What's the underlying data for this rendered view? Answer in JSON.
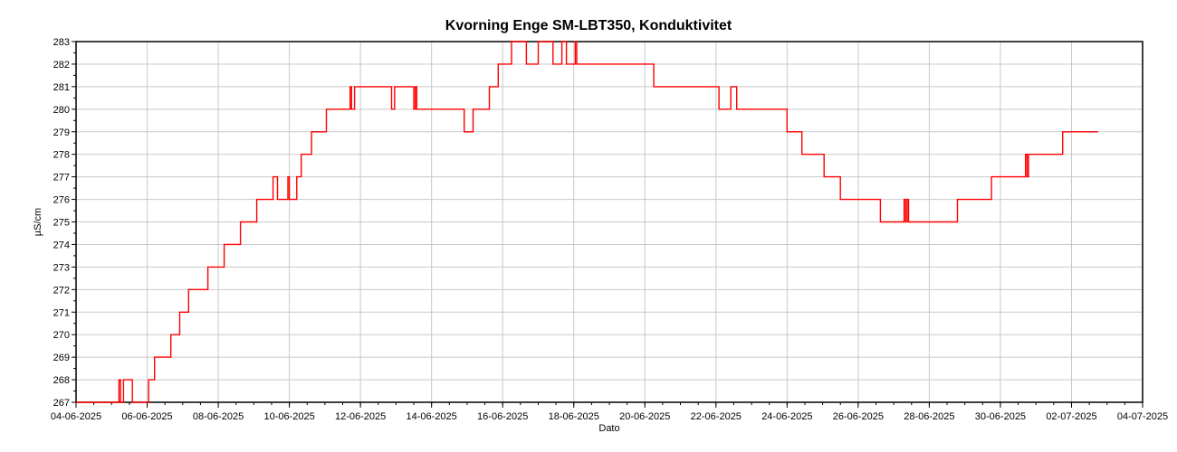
{
  "chart_data": {
    "type": "line",
    "title": "Kvorning Enge SM-LBT350, Konduktivitet",
    "xlabel": "Dato",
    "ylabel": "µS/cm",
    "ylim": [
      267,
      283
    ],
    "yticks": [
      267,
      268,
      269,
      270,
      271,
      272,
      273,
      274,
      275,
      276,
      277,
      278,
      279,
      280,
      281,
      282,
      283
    ],
    "xlim": [
      "04-06-2025",
      "04-07-2025"
    ],
    "xticks": [
      "04-06-2025",
      "06-06-2025",
      "08-06-2025",
      "10-06-2025",
      "12-06-2025",
      "14-06-2025",
      "16-06-2025",
      "18-06-2025",
      "20-06-2025",
      "22-06-2025",
      "24-06-2025",
      "26-06-2025",
      "28-06-2025",
      "30-06-2025",
      "02-07-2025",
      "04-07-2025"
    ],
    "grid": true,
    "line_color": "#ff0000",
    "series": [
      {
        "points": [
          [
            "04-06-2025 00:00",
            267
          ],
          [
            "05-06-2025 04:00",
            267
          ],
          [
            "05-06-2025 05:00",
            268
          ],
          [
            "05-06-2025 06:00",
            267
          ],
          [
            "05-06-2025 08:00",
            268
          ],
          [
            "05-06-2025 14:00",
            267
          ],
          [
            "06-06-2025 00:00",
            267
          ],
          [
            "06-06-2025 01:00",
            268
          ],
          [
            "06-06-2025 05:00",
            269
          ],
          [
            "06-06-2025 16:00",
            270
          ],
          [
            "06-06-2025 22:00",
            271
          ],
          [
            "07-06-2025 04:00",
            272
          ],
          [
            "07-06-2025 17:00",
            273
          ],
          [
            "08-06-2025 04:00",
            274
          ],
          [
            "08-06-2025 15:00",
            275
          ],
          [
            "09-06-2025 02:00",
            276
          ],
          [
            "09-06-2025 13:00",
            277
          ],
          [
            "09-06-2025 16:00",
            276
          ],
          [
            "09-06-2025 23:00",
            277
          ],
          [
            "10-06-2025 00:00",
            276
          ],
          [
            "10-06-2025 05:00",
            277
          ],
          [
            "10-06-2025 08:00",
            278
          ],
          [
            "10-06-2025 15:00",
            279
          ],
          [
            "11-06-2025 01:00",
            280
          ],
          [
            "11-06-2025 17:00",
            281
          ],
          [
            "11-06-2025 18:00",
            280
          ],
          [
            "11-06-2025 20:00",
            281
          ],
          [
            "12-06-2025 21:00",
            280
          ],
          [
            "12-06-2025 23:00",
            281
          ],
          [
            "13-06-2025 12:00",
            280
          ],
          [
            "13-06-2025 13:00",
            281
          ],
          [
            "13-06-2025 14:00",
            280
          ],
          [
            "14-06-2025 22:00",
            279
          ],
          [
            "15-06-2025 04:00",
            280
          ],
          [
            "15-06-2025 15:00",
            281
          ],
          [
            "15-06-2025 21:00",
            282
          ],
          [
            "16-06-2025 06:00",
            283
          ],
          [
            "16-06-2025 16:00",
            282
          ],
          [
            "17-06-2025 00:00",
            283
          ],
          [
            "17-06-2025 10:00",
            282
          ],
          [
            "17-06-2025 16:00",
            283
          ],
          [
            "17-06-2025 19:00",
            282
          ],
          [
            "18-06-2025 01:00",
            283
          ],
          [
            "18-06-2025 02:00",
            282
          ],
          [
            "20-06-2025 06:00",
            281
          ],
          [
            "22-06-2025 02:00",
            280
          ],
          [
            "22-06-2025 10:00",
            281
          ],
          [
            "22-06-2025 14:00",
            280
          ],
          [
            "24-06-2025 00:00",
            279
          ],
          [
            "24-06-2025 10:00",
            278
          ],
          [
            "25-06-2025 01:00",
            277
          ],
          [
            "25-06-2025 12:00",
            276
          ],
          [
            "26-06-2025 15:00",
            275
          ],
          [
            "27-06-2025 07:00",
            276
          ],
          [
            "27-06-2025 08:00",
            275
          ],
          [
            "27-06-2025 09:00",
            276
          ],
          [
            "27-06-2025 10:00",
            275
          ],
          [
            "28-06-2025 19:00",
            276
          ],
          [
            "29-06-2025 18:00",
            277
          ],
          [
            "30-06-2025 17:00",
            278
          ],
          [
            "30-06-2025 18:00",
            277
          ],
          [
            "30-06-2025 19:00",
            278
          ],
          [
            "01-07-2025 18:00",
            279
          ],
          [
            "02-07-2025 18:00",
            279
          ]
        ]
      }
    ]
  }
}
